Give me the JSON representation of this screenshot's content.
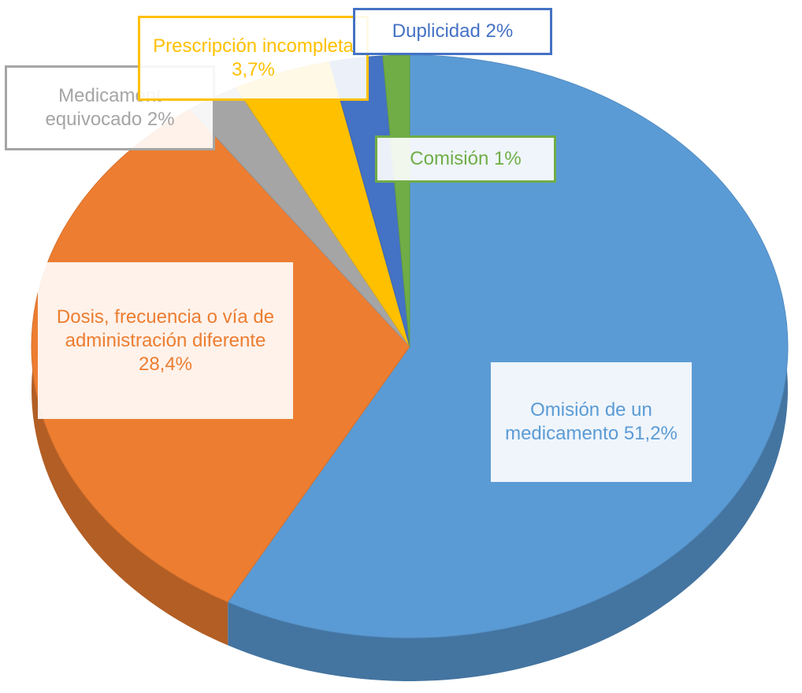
{
  "chart_data": {
    "type": "pie",
    "categories": [
      "Omisión de un medicamento",
      "Dosis, frecuencia o vía de administración diferente",
      "Medicament equivocado",
      "Prescripción incompleta",
      "Duplicidad",
      "Comisión"
    ],
    "values": [
      51.2,
      28.4,
      2,
      3.7,
      2,
      1
    ],
    "value_labels": [
      "51,2%",
      "28,4%",
      "2%",
      "3,7%",
      "2%",
      "1%"
    ],
    "colors": [
      "#5b9bd5",
      "#ed7d31",
      "#a5a5a5",
      "#ffc000",
      "#4472c4",
      "#70ad47"
    ]
  }
}
